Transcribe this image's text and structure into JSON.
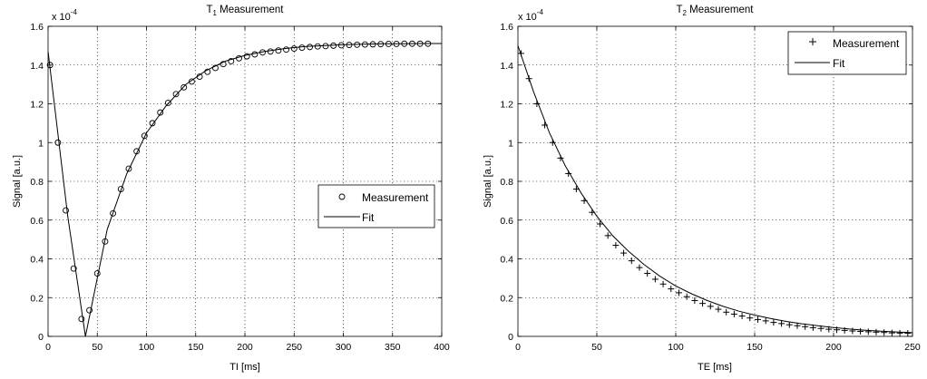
{
  "chart_data": [
    {
      "type": "scatter",
      "title": "T",
      "title_sub": "1",
      "title_rest": " Measurement",
      "xlabel": "TI [ms]",
      "ylabel": "Signal [a.u.]",
      "y_exponent_base": "x 10",
      "y_exponent_power": "-4",
      "xlim": [
        0,
        400
      ],
      "ylim": [
        0,
        1.6
      ],
      "xticks": [
        0,
        50,
        100,
        150,
        200,
        250,
        300,
        350,
        400
      ],
      "yticks": [
        0,
        0.2,
        0.4,
        0.6,
        0.8,
        1,
        1.2,
        1.4,
        1.6
      ],
      "ytick_labels": [
        "0",
        "0.2",
        "0.4",
        "0.6",
        "0.8",
        "1",
        "1.2",
        "1.4",
        "1.6"
      ],
      "grid": true,
      "legend_position": "right-middle",
      "series": [
        {
          "name": "Measurement",
          "marker": "circle",
          "x": [
            2,
            10,
            18,
            26,
            34,
            42,
            50,
            58,
            66,
            74,
            82,
            90,
            98,
            106,
            114,
            122,
            130,
            138,
            146,
            154,
            162,
            170,
            178,
            186,
            194,
            202,
            210,
            218,
            226,
            234,
            242,
            250,
            258,
            266,
            274,
            282,
            290,
            298,
            306,
            314,
            322,
            330,
            338,
            346,
            354,
            362,
            370,
            378,
            386
          ],
          "y": [
            1.4,
            1.0,
            0.65,
            0.35,
            0.09,
            0.135,
            0.325,
            0.49,
            0.635,
            0.76,
            0.865,
            0.955,
            1.035,
            1.1,
            1.155,
            1.205,
            1.25,
            1.285,
            1.315,
            1.34,
            1.365,
            1.385,
            1.405,
            1.42,
            1.435,
            1.445,
            1.455,
            1.465,
            1.47,
            1.475,
            1.48,
            1.485,
            1.49,
            1.493,
            1.496,
            1.498,
            1.5,
            1.502,
            1.504,
            1.505,
            1.506,
            1.507,
            1.508,
            1.509,
            1.509,
            1.51,
            1.51,
            1.51,
            1.51
          ]
        },
        {
          "name": "Fit",
          "line": true,
          "x": [
            0,
            20,
            38,
            60,
            80,
            100,
            120,
            140,
            160,
            180,
            200,
            220,
            240,
            260,
            280,
            300,
            320,
            340,
            360,
            380,
            400
          ],
          "y": [
            1.47,
            0.62,
            0.0,
            0.55,
            0.84,
            1.05,
            1.19,
            1.3,
            1.37,
            1.42,
            1.45,
            1.47,
            1.485,
            1.495,
            1.5,
            1.505,
            1.508,
            1.51,
            1.51,
            1.511,
            1.511
          ]
        }
      ]
    },
    {
      "type": "scatter",
      "title": "T",
      "title_sub": "2",
      "title_rest": " Measurement",
      "xlabel": "TE [ms]",
      "ylabel": "Signal [a.u.]",
      "y_exponent_base": "x 10",
      "y_exponent_power": "-4",
      "xlim": [
        0,
        250
      ],
      "ylim": [
        0,
        1.6
      ],
      "xticks": [
        0,
        50,
        100,
        150,
        200,
        250
      ],
      "yticks": [
        0,
        0.2,
        0.4,
        0.6,
        0.8,
        1,
        1.2,
        1.4,
        1.6
      ],
      "ytick_labels": [
        "0",
        "0.2",
        "0.4",
        "0.6",
        "0.8",
        "1",
        "1.2",
        "1.4",
        "1.6"
      ],
      "grid": true,
      "legend_position": "top-right",
      "series": [
        {
          "name": "Measurement",
          "marker": "plus",
          "x": [
            2,
            7,
            12,
            17,
            22,
            27,
            32,
            37,
            42,
            47,
            52,
            57,
            62,
            67,
            72,
            77,
            82,
            87,
            92,
            97,
            102,
            107,
            112,
            117,
            122,
            127,
            132,
            137,
            142,
            147,
            152,
            157,
            162,
            167,
            172,
            177,
            182,
            187,
            192,
            197,
            202,
            207,
            212,
            217,
            222,
            227,
            232,
            237,
            242,
            247
          ],
          "y": [
            1.46,
            1.33,
            1.2,
            1.09,
            1.0,
            0.92,
            0.84,
            0.76,
            0.7,
            0.64,
            0.58,
            0.52,
            0.47,
            0.43,
            0.39,
            0.355,
            0.325,
            0.295,
            0.27,
            0.245,
            0.225,
            0.205,
            0.185,
            0.17,
            0.155,
            0.14,
            0.125,
            0.115,
            0.105,
            0.095,
            0.087,
            0.08,
            0.072,
            0.066,
            0.06,
            0.055,
            0.05,
            0.045,
            0.041,
            0.037,
            0.034,
            0.031,
            0.028,
            0.026,
            0.024,
            0.022,
            0.02,
            0.018,
            0.017,
            0.016
          ]
        },
        {
          "name": "Fit",
          "line": true,
          "x": [
            0,
            10,
            20,
            30,
            40,
            50,
            60,
            70,
            80,
            90,
            100,
            110,
            120,
            130,
            140,
            150,
            160,
            170,
            180,
            190,
            200,
            210,
            220,
            230,
            240,
            250
          ],
          "y": [
            1.5,
            1.26,
            1.05,
            0.88,
            0.74,
            0.62,
            0.52,
            0.44,
            0.37,
            0.31,
            0.26,
            0.22,
            0.185,
            0.155,
            0.13,
            0.11,
            0.092,
            0.077,
            0.065,
            0.055,
            0.046,
            0.038,
            0.032,
            0.027,
            0.023,
            0.019
          ]
        }
      ]
    }
  ]
}
